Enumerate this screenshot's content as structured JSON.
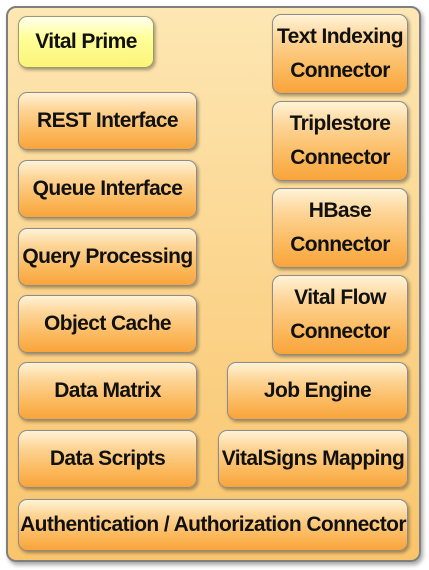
{
  "diagram": {
    "title_box": "Vital Prime",
    "left_column": [
      "REST Interface",
      "Queue Interface",
      "Query Processing",
      "Object Cache",
      "Data Matrix",
      "Data Scripts"
    ],
    "right_column": [
      "Text Indexing\nConnector",
      "Triplestore\nConnector",
      "HBase\nConnector",
      "Vital Flow\nConnector",
      "Job Engine",
      "VitalSigns Mapping"
    ],
    "bottom_bar": "Authentication / Authorization Connector",
    "colors": {
      "container": "#fbd38a",
      "module": "#f9a43a",
      "title_box": "#ffff9a",
      "border": "#8c8c8c"
    }
  }
}
